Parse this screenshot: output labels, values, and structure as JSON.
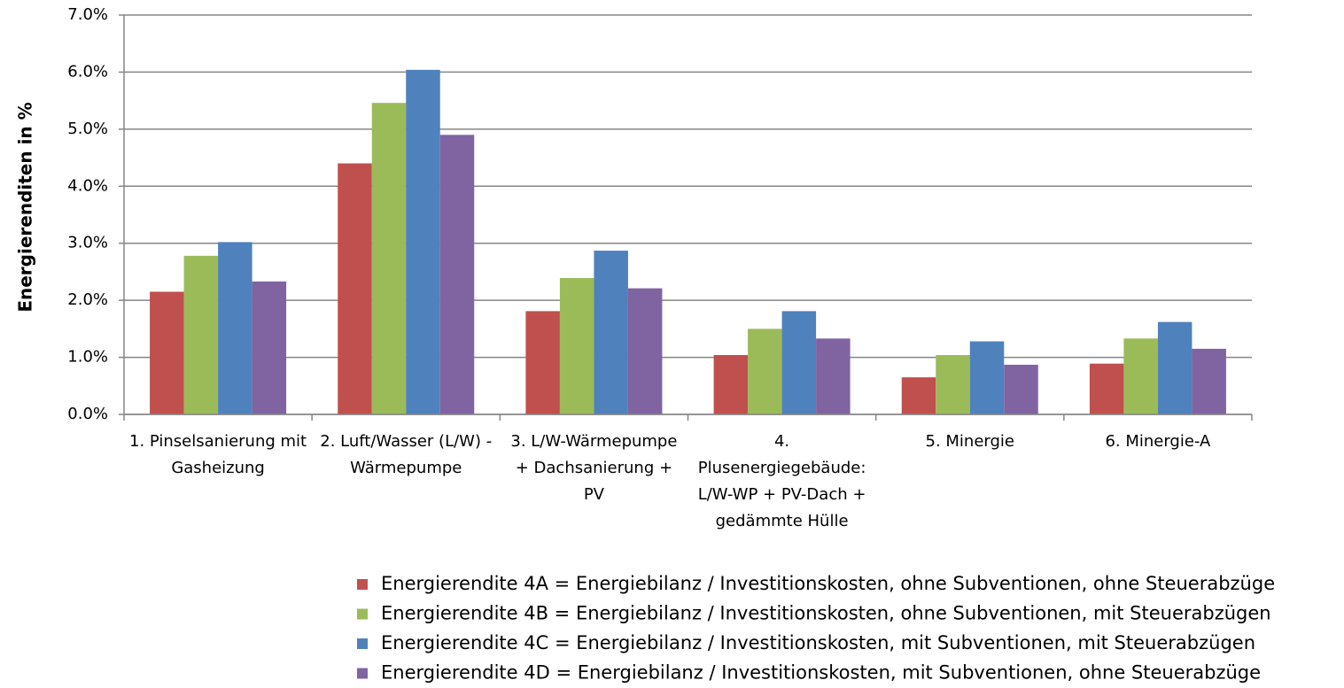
{
  "chart_data": {
    "type": "bar",
    "y_label": "Energierenditen in %",
    "categories": [
      "1. Pinselsanierung mit Gasheizung",
      "2. Luft/Wasser (L/W) - Wärmepumpe",
      "3. L/W-Wärmepumpe + Dachsanierung + PV",
      "4. Plusenergiegebäude: L/W-WP + PV-Dach + gedämmte Hülle",
      "5. Minergie",
      "6. Minergie-A"
    ],
    "series": [
      {
        "name": "Energierendite 4A = Energiebilanz / Investitionskosten, ohne Subventionen, ohne Steuerabzüge",
        "color": "#c0504d",
        "values": [
          2.15,
          4.4,
          1.81,
          1.04,
          0.65,
          0.89
        ]
      },
      {
        "name": "Energierendite 4B = Energiebilanz / Investitionskosten, ohne Subventionen, mit Steuerabzügen",
        "color": "#9bbb59",
        "values": [
          2.78,
          5.46,
          2.39,
          1.5,
          1.04,
          1.33
        ]
      },
      {
        "name": "Energierendite 4C = Energiebilanz / Investitionskosten, mit Subventionen, mit Steuerabzügen",
        "color": "#4f81bd",
        "values": [
          3.02,
          6.04,
          2.87,
          1.81,
          1.28,
          1.62
        ]
      },
      {
        "name": "Energierendite 4D = Energiebilanz / Investitionskosten, mit Subventionen, ohne Steuerabzüge",
        "color": "#8064a2",
        "values": [
          2.33,
          4.9,
          2.21,
          1.33,
          0.87,
          1.15
        ]
      }
    ],
    "ylim": [
      0,
      7
    ],
    "yticks": [
      {
        "value": 0,
        "label": "0.0%"
      },
      {
        "value": 1,
        "label": "1.0%"
      },
      {
        "value": 2,
        "label": "2.0%"
      },
      {
        "value": 3,
        "label": "3.0%"
      },
      {
        "value": 4,
        "label": "4.0%"
      },
      {
        "value": 5,
        "label": "5.0%"
      },
      {
        "value": 6,
        "label": "6.0%"
      },
      {
        "value": 7,
        "label": "7.0%"
      }
    ],
    "grid": true
  }
}
